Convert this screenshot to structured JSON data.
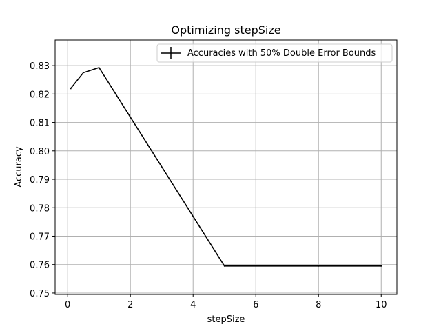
{
  "chart_data": {
    "type": "line",
    "title": "Optimizing stepSize",
    "xlabel": "stepSize",
    "ylabel": "Accuracy",
    "xlim": [
      -0.4,
      10.5
    ],
    "ylim": [
      0.7495,
      0.839
    ],
    "xticks": [
      0,
      2,
      4,
      6,
      8,
      10
    ],
    "yticks": [
      0.75,
      0.76,
      0.77,
      0.78,
      0.79,
      0.8,
      0.81,
      0.82,
      0.83
    ],
    "ytick_labels": [
      "0.75",
      "0.76",
      "0.77",
      "0.78",
      "0.79",
      "0.80",
      "0.81",
      "0.82",
      "0.83"
    ],
    "grid": true,
    "legend_position": "top-right",
    "series": [
      {
        "name": "Accuracies with 50% Double Error Bounds",
        "color": "#000000",
        "x": [
          0.1,
          0.5,
          1,
          5,
          8,
          10
        ],
        "y": [
          0.822,
          0.8275,
          0.8293,
          0.7595,
          0.7595,
          0.7595
        ],
        "yerr": [
          0.0015,
          0.0012,
          0.0012,
          0.001,
          0.001,
          0.001
        ]
      }
    ]
  }
}
